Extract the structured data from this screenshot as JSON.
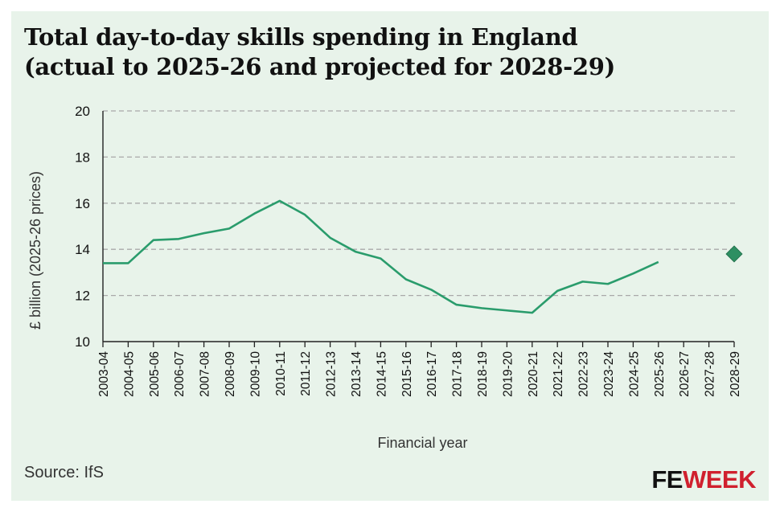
{
  "title_line1": "Total day-to-day skills spending in England",
  "title_line2": "(actual to 2025-26 and projected for 2028-29)",
  "source": "Source: IfS",
  "logo": {
    "part1": "FE",
    "part2": "WEEK"
  },
  "colors": {
    "line": "#2a9c6c",
    "marker": "#2e8f62",
    "grid": "#a9a9a9",
    "background": "#e8f3ea",
    "brand_red": "#d0202e"
  },
  "chart_data": {
    "type": "line",
    "xlabel": "Financial year",
    "ylabel": "£ billion (2025-26 prices)",
    "ylim": [
      10,
      20
    ],
    "yticks": [
      10,
      12,
      14,
      16,
      18,
      20
    ],
    "grid": "horizontal dashed",
    "categories": [
      "2003-04",
      "2004-05",
      "2005-06",
      "2006-07",
      "2007-08",
      "2008-09",
      "2009-10",
      "2010-11",
      "2011-12",
      "2012-13",
      "2013-14",
      "2014-15",
      "2015-16",
      "2016-17",
      "2017-18",
      "2018-19",
      "2019-20",
      "2020-21",
      "2021-22",
      "2022-23",
      "2023-24",
      "2024-25",
      "2025-26",
      "2026-27",
      "2027-28",
      "2028-29"
    ],
    "series": [
      {
        "style": "line",
        "values": [
          13.4,
          13.4,
          14.4,
          14.45,
          14.7,
          14.9,
          15.55,
          16.1,
          15.5,
          14.5,
          13.9,
          13.6,
          12.7,
          12.25,
          11.6,
          11.45,
          11.35,
          11.25,
          12.2,
          12.6,
          12.5,
          12.95,
          13.45,
          null,
          null,
          null
        ]
      },
      {
        "style": "diamond-marker",
        "values": [
          null,
          null,
          null,
          null,
          null,
          null,
          null,
          null,
          null,
          null,
          null,
          null,
          null,
          null,
          null,
          null,
          null,
          null,
          null,
          null,
          null,
          null,
          null,
          null,
          null,
          13.8
        ]
      }
    ]
  }
}
